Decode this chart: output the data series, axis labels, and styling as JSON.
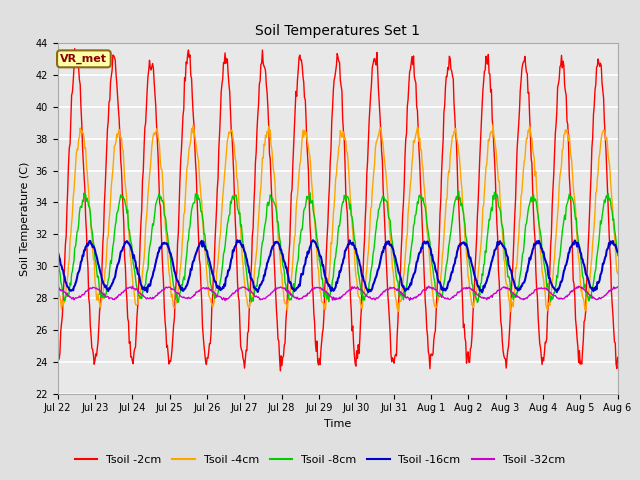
{
  "title": "Soil Temperatures Set 1",
  "xlabel": "Time",
  "ylabel": "Soil Temperature (C)",
  "ylim": [
    22,
    44
  ],
  "yticks": [
    22,
    24,
    26,
    28,
    30,
    32,
    34,
    36,
    38,
    40,
    42,
    44
  ],
  "xtick_labels": [
    "Jul 22",
    "Jul 23",
    "Jul 24",
    "Jul 25",
    "Jul 26",
    "Jul 27",
    "Jul 28",
    "Jul 29",
    "Jul 30",
    "Jul 31",
    "Aug 1",
    "Aug 2",
    "Aug 3",
    "Aug 4",
    "Aug 5",
    "Aug 6"
  ],
  "annotation_text": "VR_met",
  "annotation_box_color": "#FFFFAA",
  "annotation_text_color": "#8B0000",
  "annotation_edge_color": "#8B6914",
  "series_colors": [
    "#FF0000",
    "#FFA500",
    "#00CC00",
    "#0000CC",
    "#CC00CC"
  ],
  "series_labels": [
    "Tsoil -2cm",
    "Tsoil -4cm",
    "Tsoil -8cm",
    "Tsoil -16cm",
    "Tsoil -32cm"
  ],
  "bg_color": "#E8E8E8",
  "fig_bg_color": "#E0E0E0",
  "grid_color": "#FFFFFF",
  "n_days": 15,
  "pts_per_day": 48,
  "tsoil_2cm_mean": 33.5,
  "tsoil_2cm_amp": 9.5,
  "tsoil_2cm_phase": 1.5708,
  "tsoil_4cm_mean": 33.0,
  "tsoil_4cm_amp": 5.5,
  "tsoil_4cm_phase": 2.4,
  "tsoil_8cm_mean": 31.2,
  "tsoil_8cm_amp": 3.2,
  "tsoil_8cm_phase": 3.0,
  "tsoil_16cm_mean": 30.0,
  "tsoil_16cm_amp": 1.5,
  "tsoil_16cm_phase": 3.8,
  "tsoil_32cm_mean": 28.3,
  "tsoil_32cm_amp": 0.35,
  "tsoil_32cm_phase": 4.5,
  "title_fontsize": 10,
  "axis_label_fontsize": 8,
  "tick_fontsize": 7,
  "legend_fontsize": 8
}
